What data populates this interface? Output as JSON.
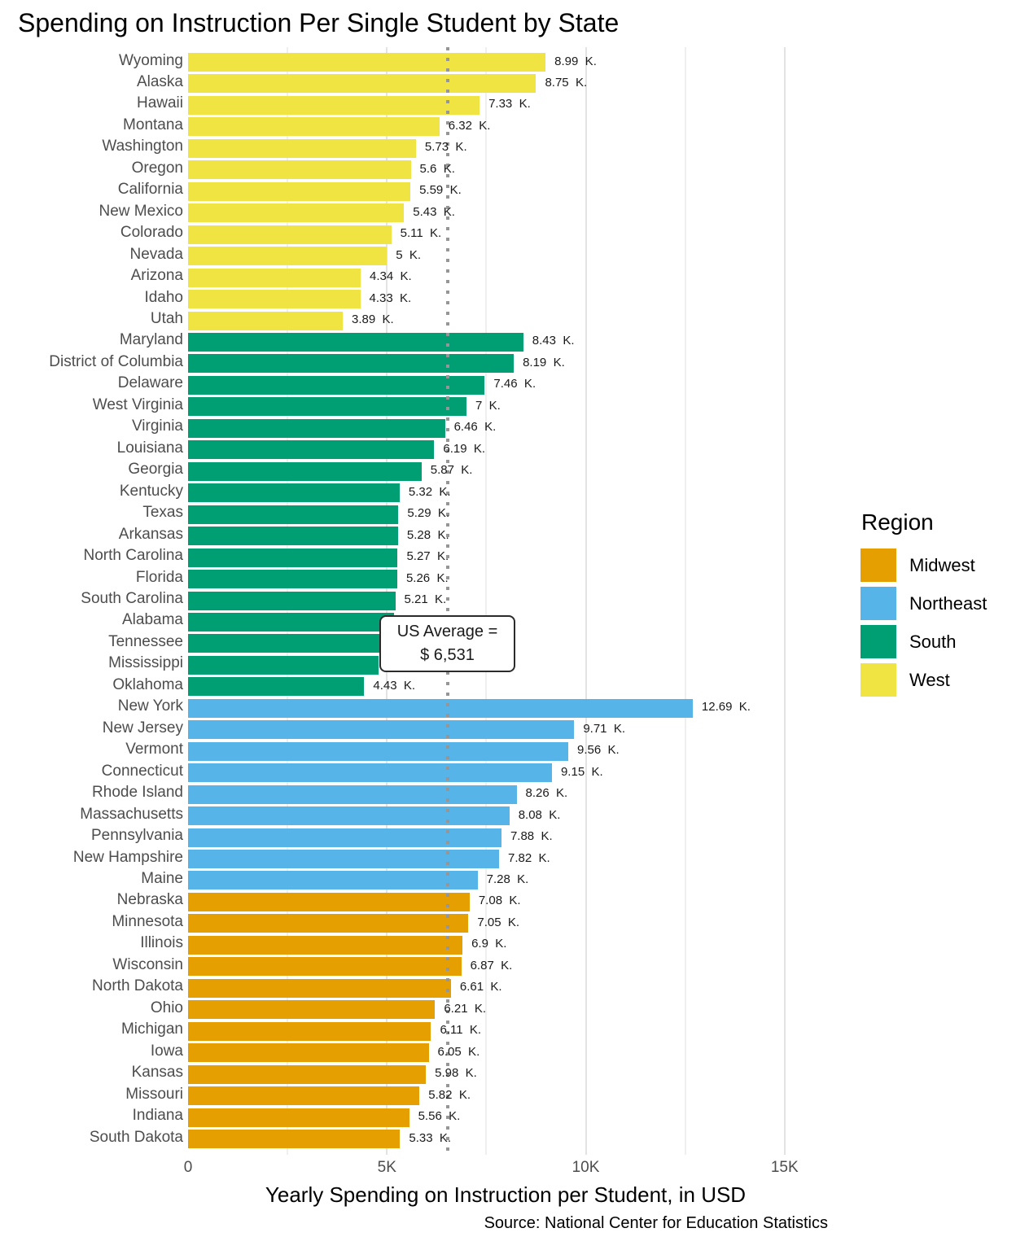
{
  "title": "Spending on Instruction Per Single Student by State",
  "caption": "Source: National Center for Education Statistics",
  "x_axis": {
    "label": "Yearly Spending on Instruction per Student, in USD",
    "ticks": [
      {
        "label": "0",
        "value_k": 0
      },
      {
        "label": "5K",
        "value_k": 5
      },
      {
        "label": "10K",
        "value_k": 10
      },
      {
        "label": "15K",
        "value_k": 15
      }
    ],
    "minor_gridlines_k": [
      2.5,
      7.5,
      12.5
    ]
  },
  "annotation": {
    "line1": "US Average =",
    "line2": "$ 6,531",
    "value_usd": 6531
  },
  "legend": {
    "title": "Region",
    "items": [
      {
        "label": "Midwest",
        "color": "#E69F00"
      },
      {
        "label": "Northeast",
        "color": "#56B4E9"
      },
      {
        "label": "South",
        "color": "#009E73"
      },
      {
        "label": "West",
        "color": "#F0E442"
      }
    ]
  },
  "colors": {
    "background": "#FFFFFF",
    "gridline_major": "#E3E3E3",
    "gridline_minor": "#EFEFEF",
    "average_line": "#969696",
    "axis_text": "#4D4D4D",
    "value_text": "#1A1A1A"
  },
  "chart_data": {
    "type": "bar",
    "orientation": "horizontal",
    "title": "Spending on Instruction Per Single Student by State",
    "xlabel": "Yearly Spending on Instruction per Student, in USD",
    "xlim_k": [
      0,
      15
    ],
    "grid": "vertical-only",
    "legend_position": "right",
    "us_average_k": 6.531,
    "bars": [
      {
        "state": "Wyoming",
        "region": "West",
        "value_k": 8.99,
        "label": "8.99  K."
      },
      {
        "state": "Alaska",
        "region": "West",
        "value_k": 8.75,
        "label": "8.75  K."
      },
      {
        "state": "Hawaii",
        "region": "West",
        "value_k": 7.33,
        "label": "7.33  K."
      },
      {
        "state": "Montana",
        "region": "West",
        "value_k": 6.32,
        "label": "6.32  K."
      },
      {
        "state": "Washington",
        "region": "West",
        "value_k": 5.73,
        "label": "5.73  K."
      },
      {
        "state": "Oregon",
        "region": "West",
        "value_k": 5.6,
        "label": "5.6  K."
      },
      {
        "state": "California",
        "region": "West",
        "value_k": 5.59,
        "label": "5.59  K."
      },
      {
        "state": "New Mexico",
        "region": "West",
        "value_k": 5.43,
        "label": "5.43  K."
      },
      {
        "state": "Colorado",
        "region": "West",
        "value_k": 5.11,
        "label": "5.11  K."
      },
      {
        "state": "Nevada",
        "region": "West",
        "value_k": 5,
        "label": "5  K."
      },
      {
        "state": "Arizona",
        "region": "West",
        "value_k": 4.34,
        "label": "4.34  K."
      },
      {
        "state": "Idaho",
        "region": "West",
        "value_k": 4.33,
        "label": "4.33  K."
      },
      {
        "state": "Utah",
        "region": "West",
        "value_k": 3.89,
        "label": "3.89  K."
      },
      {
        "state": "Maryland",
        "region": "South",
        "value_k": 8.43,
        "label": "8.43  K."
      },
      {
        "state": "District of Columbia",
        "region": "South",
        "value_k": 8.19,
        "label": "8.19  K."
      },
      {
        "state": "Delaware",
        "region": "South",
        "value_k": 7.46,
        "label": "7.46  K."
      },
      {
        "state": "West Virginia",
        "region": "South",
        "value_k": 7,
        "label": "7  K."
      },
      {
        "state": "Virginia",
        "region": "South",
        "value_k": 6.46,
        "label": "6.46  K."
      },
      {
        "state": "Louisiana",
        "region": "South",
        "value_k": 6.19,
        "label": "6.19  K."
      },
      {
        "state": "Georgia",
        "region": "South",
        "value_k": 5.87,
        "label": "5.87  K."
      },
      {
        "state": "Kentucky",
        "region": "South",
        "value_k": 5.32,
        "label": "5.32  K."
      },
      {
        "state": "Texas",
        "region": "South",
        "value_k": 5.29,
        "label": "5.29  K."
      },
      {
        "state": "Arkansas",
        "region": "South",
        "value_k": 5.28,
        "label": "5.28  K."
      },
      {
        "state": "North Carolina",
        "region": "South",
        "value_k": 5.27,
        "label": "5.27  K."
      },
      {
        "state": "Florida",
        "region": "South",
        "value_k": 5.26,
        "label": "5.26  K."
      },
      {
        "state": "South Carolina",
        "region": "South",
        "value_k": 5.21,
        "label": "5.21  K."
      },
      {
        "state": "Alabama",
        "region": "South",
        "value_k": 5.18,
        "label": ""
      },
      {
        "state": "Tennessee",
        "region": "South",
        "value_k": 4.92,
        "label": ""
      },
      {
        "state": "Mississippi",
        "region": "South",
        "value_k": 4.8,
        "label": ""
      },
      {
        "state": "Oklahoma",
        "region": "South",
        "value_k": 4.43,
        "label": "4.43  K."
      },
      {
        "state": "New York",
        "region": "Northeast",
        "value_k": 12.69,
        "label": "12.69  K."
      },
      {
        "state": "New Jersey",
        "region": "Northeast",
        "value_k": 9.71,
        "label": "9.71  K."
      },
      {
        "state": "Vermont",
        "region": "Northeast",
        "value_k": 9.56,
        "label": "9.56  K."
      },
      {
        "state": "Connecticut",
        "region": "Northeast",
        "value_k": 9.15,
        "label": "9.15  K."
      },
      {
        "state": "Rhode Island",
        "region": "Northeast",
        "value_k": 8.26,
        "label": "8.26  K."
      },
      {
        "state": "Massachusetts",
        "region": "Northeast",
        "value_k": 8.08,
        "label": "8.08  K."
      },
      {
        "state": "Pennsylvania",
        "region": "Northeast",
        "value_k": 7.88,
        "label": "7.88  K."
      },
      {
        "state": "New Hampshire",
        "region": "Northeast",
        "value_k": 7.82,
        "label": "7.82  K."
      },
      {
        "state": "Maine",
        "region": "Northeast",
        "value_k": 7.28,
        "label": "7.28  K."
      },
      {
        "state": "Nebraska",
        "region": "Midwest",
        "value_k": 7.08,
        "label": "7.08  K."
      },
      {
        "state": "Minnesota",
        "region": "Midwest",
        "value_k": 7.05,
        "label": "7.05  K."
      },
      {
        "state": "Illinois",
        "region": "Midwest",
        "value_k": 6.9,
        "label": "6.9  K."
      },
      {
        "state": "Wisconsin",
        "region": "Midwest",
        "value_k": 6.87,
        "label": "6.87  K."
      },
      {
        "state": "North Dakota",
        "region": "Midwest",
        "value_k": 6.61,
        "label": "6.61  K."
      },
      {
        "state": "Ohio",
        "region": "Midwest",
        "value_k": 6.21,
        "label": "6.21  K."
      },
      {
        "state": "Michigan",
        "region": "Midwest",
        "value_k": 6.11,
        "label": "6.11  K."
      },
      {
        "state": "Iowa",
        "region": "Midwest",
        "value_k": 6.05,
        "label": "6.05  K."
      },
      {
        "state": "Kansas",
        "region": "Midwest",
        "value_k": 5.98,
        "label": "5.98  K."
      },
      {
        "state": "Missouri",
        "region": "Midwest",
        "value_k": 5.82,
        "label": "5.82  K."
      },
      {
        "state": "Indiana",
        "region": "Midwest",
        "value_k": 5.56,
        "label": "5.56  K."
      },
      {
        "state": "South Dakota",
        "region": "Midwest",
        "value_k": 5.33,
        "label": "5.33  K."
      }
    ]
  }
}
